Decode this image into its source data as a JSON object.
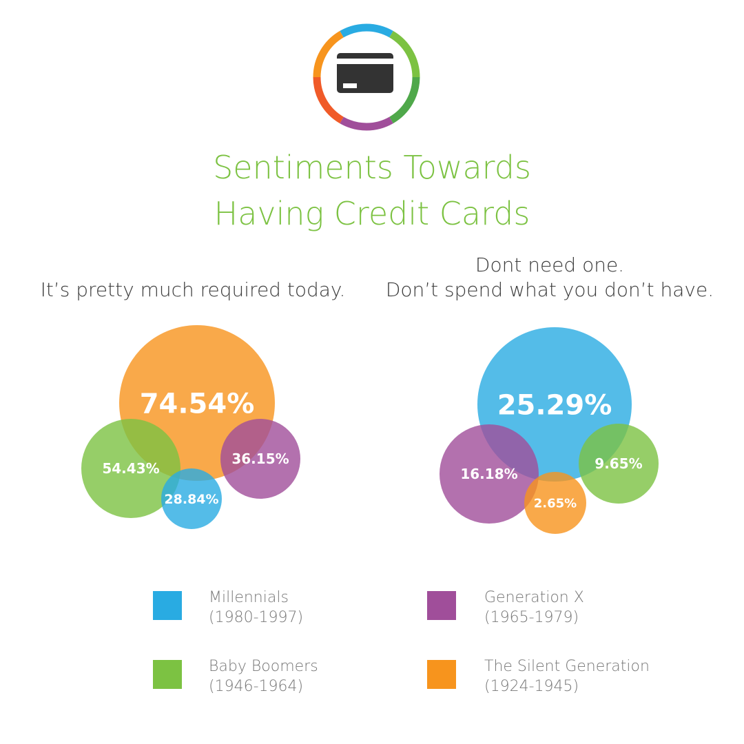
{
  "title": {
    "line1": "Sentiments Towards",
    "line2": "Having Credit Cards"
  },
  "icon": {
    "name": "credit-card-icon",
    "ring_colors": [
      "#29abe2",
      "#7cc242",
      "#4fa84a",
      "#a04e9a",
      "#f05a28",
      "#f7941d"
    ],
    "card_color": "#333333"
  },
  "legend": [
    {
      "name": "Millennials",
      "years": "(1980-1997)",
      "color": "#29abe2"
    },
    {
      "name": "Generation X",
      "years": "(1965-1979)",
      "color": "#a04e9a"
    },
    {
      "name": "Baby Boomers",
      "years": "(1946-1964)",
      "color": "#7cc242"
    },
    {
      "name": "The Silent Generation",
      "years": "(1924-1945)",
      "color": "#f7941d"
    }
  ],
  "chart_data": [
    {
      "type": "bubble",
      "subtitle_lines": [
        "It’s pretty much required today."
      ],
      "series": [
        {
          "name": "The Silent Generation",
          "value": 74.54,
          "label": "74.54%",
          "color": "#f7941d"
        },
        {
          "name": "Baby Boomers",
          "value": 54.43,
          "label": "54.43%",
          "color": "#7cc242"
        },
        {
          "name": "Generation X",
          "value": 36.15,
          "label": "36.15%",
          "color": "#a04e9a"
        },
        {
          "name": "Millennials",
          "value": 28.84,
          "label": "28.84%",
          "color": "#29abe2"
        }
      ]
    },
    {
      "type": "bubble",
      "subtitle_lines": [
        "Dont need one.",
        "Don’t spend what you don’t have."
      ],
      "series": [
        {
          "name": "Millennials",
          "value": 25.29,
          "label": "25.29%",
          "color": "#29abe2"
        },
        {
          "name": "Generation X",
          "value": 16.18,
          "label": "16.18%",
          "color": "#a04e9a"
        },
        {
          "name": "Baby Boomers",
          "value": 9.65,
          "label": "9.65%",
          "color": "#7cc242"
        },
        {
          "name": "The Silent Generation",
          "value": 2.65,
          "label": "2.65%",
          "color": "#f7941d"
        }
      ]
    }
  ]
}
